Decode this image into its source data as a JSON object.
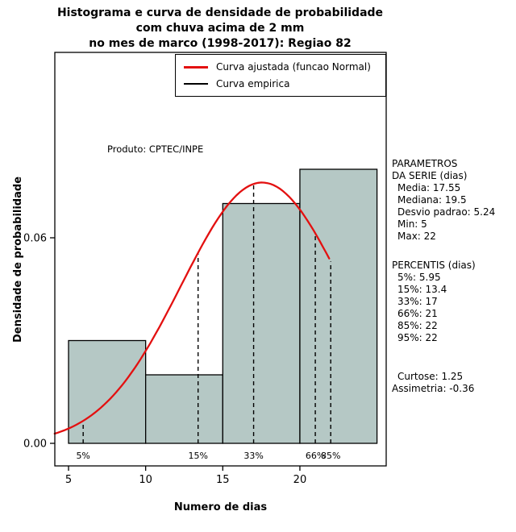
{
  "title": {
    "line1": "Histograma e curva de densidade de probabilidade",
    "line2": "com chuva acima de 2 mm",
    "line3": "no mes de marco (1998-2017): Regiao 82"
  },
  "legend": {
    "fitted": "Curva ajustada (funcao Normal)",
    "empirical": "Curva empirica"
  },
  "annotation": "Produto: CPTEC/INPE",
  "axes": {
    "x_label": "Numero de dias",
    "y_label": "Densidade de probabilidade",
    "x_ticks": [
      {
        "value": 5,
        "label": "5"
      },
      {
        "value": 10,
        "label": "10"
      },
      {
        "value": 15,
        "label": "15"
      },
      {
        "value": 20,
        "label": "20"
      }
    ],
    "y_ticks": [
      {
        "value": 0,
        "label": "0.00"
      },
      {
        "value": 0.06,
        "label": "0.06"
      }
    ]
  },
  "side_panel": {
    "header_line1": "PARAMETROS",
    "header_line2": "DA SERIE (dias)",
    "series_params": [
      "Media: 17.55",
      "Mediana: 19.5",
      "Desvio padrao: 5.24",
      "Min: 5",
      "Max: 22"
    ],
    "percentis_header": "PERCENTIS (dias)",
    "percentis": [
      "5%: 5.95",
      "15%: 13.4",
      "33%: 17",
      "66%: 21",
      "85%: 22",
      "95%: 22"
    ],
    "curtose": "Curtose: 1.25",
    "assimetria": "Assimetria: -0.36"
  },
  "chart_data": {
    "type": "bar",
    "subtype": "histogram-with-density-curve",
    "title": "Histograma e curva de densidade de probabilidade com chuva acima de 2 mm no mes de marco (1998-2017): Regiao 82",
    "xlabel": "Numero de dias",
    "ylabel": "Densidade de probabilidade",
    "xlim": [
      4.1,
      25.6
    ],
    "ylim": [
      -0.007,
      0.114
    ],
    "grid": false,
    "legend_position": "top-right-inside",
    "histogram": {
      "breaks": [
        5,
        10,
        15,
        20,
        25
      ],
      "densities": [
        0.03,
        0.02,
        0.07,
        0.08
      ]
    },
    "normal": {
      "mean": 17.55,
      "sd": 5.24,
      "x_range": [
        4.1,
        22
      ]
    },
    "percentile_lines": [
      {
        "label": "5%",
        "x": 5.95
      },
      {
        "label": "15%",
        "x": 13.4
      },
      {
        "label": "33%",
        "x": 17
      },
      {
        "label": "66%",
        "x": 21
      },
      {
        "label": "85%",
        "x": 22
      }
    ],
    "colors": {
      "bar_fill": "#b5c8c5",
      "bar_border": "#000000",
      "fitted": "#e31010",
      "empirical": "#000000",
      "dashed": "#000000"
    }
  }
}
